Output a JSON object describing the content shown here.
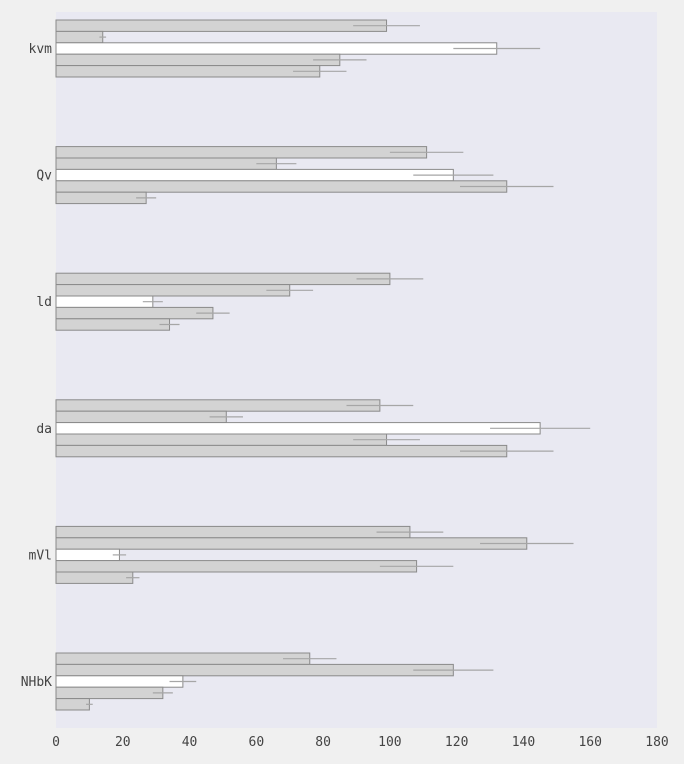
{
  "colors": {
    "figure_background": "#f0f0f0",
    "plot_background": "#e9e9f2",
    "bar_fill": "#d3d3d3",
    "highlight_bar_fill": "#ffffff",
    "bar_edge": "#8a8a8a",
    "error_bar": "#a6a6a6",
    "tick_label": "#444444"
  },
  "chart_data": {
    "type": "bar",
    "orientation": "horizontal",
    "categories": [
      "kvm",
      "Qv",
      "ld",
      "da",
      "mVl",
      "NHbK"
    ],
    "bars_per_group": 5,
    "highlight_bar_index": 2,
    "series": [
      {
        "values": [
          99,
          111,
          100,
          97,
          106,
          76
        ],
        "errors": [
          10,
          11,
          10,
          10,
          10,
          8
        ]
      },
      {
        "values": [
          14,
          66,
          70,
          51,
          141,
          119
        ],
        "errors": [
          1,
          6,
          7,
          5,
          14,
          12
        ]
      },
      {
        "values": [
          132,
          119,
          29,
          145,
          19,
          38
        ],
        "errors": [
          13,
          12,
          3,
          15,
          2,
          4
        ]
      },
      {
        "values": [
          85,
          135,
          47,
          99,
          108,
          32
        ],
        "errors": [
          8,
          14,
          5,
          10,
          11,
          3
        ]
      },
      {
        "values": [
          79,
          27,
          34,
          135,
          23,
          10
        ],
        "errors": [
          8,
          3,
          3,
          14,
          2,
          1
        ]
      }
    ],
    "xlim": [
      0,
      180
    ],
    "xticks": [
      0,
      20,
      40,
      60,
      80,
      100,
      120,
      140,
      160,
      180
    ],
    "grid": false,
    "legend": "none",
    "title": "",
    "xlabel": "",
    "ylabel": ""
  }
}
